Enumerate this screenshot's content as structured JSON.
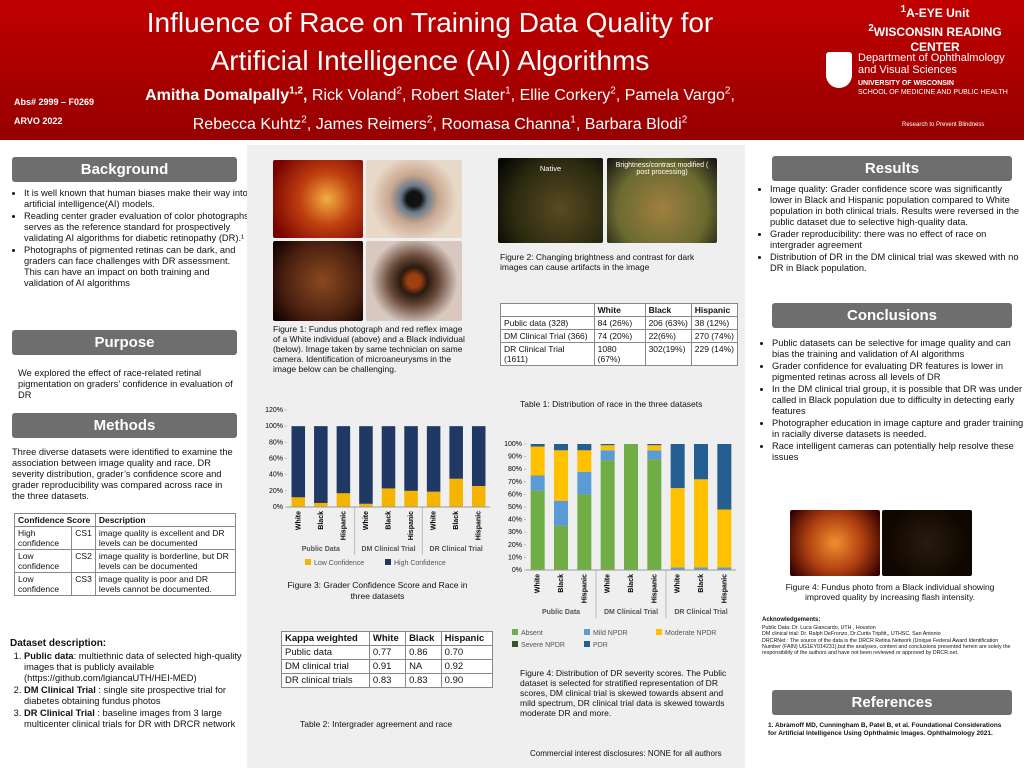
{
  "header": {
    "title": "Influence of Race on Training Data Quality for Artificial Intelligence (AI) Algorithms",
    "authors": [
      {
        "name": "Amitha Domalpally",
        "sup": "1,2"
      },
      {
        "name": "Rick Voland",
        "sup": "2"
      },
      {
        "name": "Robert Slater",
        "sup": "1"
      },
      {
        "name": "Ellie Corkery",
        "sup": "2"
      },
      {
        "name": "Pamela Vargo",
        "sup": "2"
      },
      {
        "name": "Rebecca Kuhtz",
        "sup": "2"
      },
      {
        "name": "James Reimers",
        "sup": "2"
      },
      {
        "name": "Roomasa Channa",
        "sup": "1"
      },
      {
        "name": "Barbara Blodi",
        "sup": "2"
      }
    ],
    "abstract": "Abs# 2999 – F0269",
    "meeting": "ARVO 2022",
    "unit1_sup": "1",
    "unit1": "A-EYE Unit",
    "unit2_sup": "2",
    "unit2": "WISCONSIN READING CENTER",
    "dept": "Department of Ophthalmology and Visual Sciences",
    "univ": "UNIVERSITY OF WISCONSIN",
    "school": "SCHOOL OF MEDICINE AND PUBLIC HEALTH",
    "tagline": "Research to Prevent Blindness"
  },
  "background": {
    "heading": "Background",
    "items": [
      "It is well known that human biases make their way into artificial intelligence(AI) models.",
      "Reading center grader evaluation of color photographs serves as the reference standard for prospectively validating AI algorithms for diabetic retinopathy (DR).¹",
      "Photographs of pigmented retinas can be dark, and graders can face challenges with DR assessment. This can have an impact on both training and validation of AI algorithms"
    ]
  },
  "purpose": {
    "heading": "Purpose",
    "text": "We explored the effect of race-related retinal pigmentation on graders’ confidence in evaluation of DR"
  },
  "methods": {
    "heading": "Methods",
    "text": "Three diverse datasets were identified to examine the association between image quality and race. DR severity distribution, grader’s confidence score and grader reproducibility was compared across race in the three datasets.",
    "table": {
      "header": [
        "Confidence Score",
        "Description"
      ],
      "rows": [
        [
          "High confidence",
          "CS1",
          "image quality is excellent and DR levels can be documented"
        ],
        [
          "Low confidence",
          "CS2",
          "image quality is borderline, but DR levels can be documented"
        ],
        [
          "Low confidence",
          "CS3",
          "image quality is poor and DR levels cannot be documented."
        ]
      ]
    },
    "dataset_heading": "Dataset description:",
    "datasets": [
      {
        "lead": "Public data",
        "text": ": multiethnic data of selected high-quality images that is publicly available (https://github.com/lgiancaUTH/HEI-MED)"
      },
      {
        "lead": "DM Clinical Trial",
        "text": " : single site prospective trial for diabetes obtaining fundus photos"
      },
      {
        "lead": "DR Clinical Trial",
        "text": " : baseline images from 3 large multicenter clinical trials for DR with DRCR network"
      }
    ]
  },
  "figure1": {
    "caption": "Figure 1: Fundus photograph and red reflex image of a White individual (above) and a Black individual (below). Image taken by same technician on same camera. Identification of microaneurysms in the image below can be challenging."
  },
  "figure2": {
    "label_left": "Native",
    "label_right": "Brightness/contrast modified ( post processing)",
    "caption": "Figure 2: Changing brightness and contrast for dark images  can cause artifacts in the image"
  },
  "table1": {
    "header": [
      "",
      "White",
      "Black",
      "Hispanic"
    ],
    "rows": [
      [
        "Public data (328)",
        "84 (26%)",
        "206 (63%)",
        "38 (12%)"
      ],
      [
        "DM Clinical Trial (366)",
        "74 (20%)",
        "22(6%)",
        "270 (74%)"
      ],
      [
        "DR Clinical Trial (1611)",
        "1080 (67%)",
        "302(19%)",
        "229 (14%)"
      ]
    ],
    "caption": "Table 1: Distribution of race in the three datasets"
  },
  "table2": {
    "header": [
      "Kappa weighted",
      "White",
      "Black",
      "Hispanic"
    ],
    "rows": [
      [
        "Public data",
        "0.77",
        "0.86",
        "0.70"
      ],
      [
        "DM clinical trial",
        "0.91",
        "NA",
        "0.92"
      ],
      [
        "DR clinical trials",
        "0.83",
        "0.83",
        "0.90"
      ]
    ],
    "caption": "Table 2: Intergrader agreement and race"
  },
  "chart_data": [
    {
      "type": "bar",
      "stacked": true,
      "caption": "Figure 3:  Grader Confidence Score and Race in three datasets",
      "categories": [
        "White",
        "Black",
        "Hispanic",
        "White",
        "Black",
        "Hispanic",
        "White",
        "Black",
        "Hispanic"
      ],
      "groups": [
        "Public Data",
        "DM Clinical Trial",
        "DR Clinical Trial"
      ],
      "series": [
        {
          "name": "Low Confidence",
          "color": "#f5b400",
          "values": [
            12,
            5,
            17,
            4,
            23,
            20,
            19,
            35,
            26
          ]
        },
        {
          "name": "High Confidence",
          "color": "#1f3864",
          "values": [
            88,
            95,
            83,
            96,
            77,
            80,
            81,
            65,
            74
          ]
        }
      ],
      "ylim": [
        0,
        120
      ],
      "yticks": [
        {
          "value": 0,
          "label": "0%"
        },
        {
          "value": 20,
          "label": "20%"
        },
        {
          "value": 40,
          "label": "40%"
        },
        {
          "value": 60,
          "label": "60%"
        },
        {
          "value": 80,
          "label": "80%"
        },
        {
          "value": 100,
          "label": "100%"
        },
        {
          "value": 120,
          "label": "120%"
        }
      ],
      "legend": "bottom"
    },
    {
      "type": "bar",
      "stacked": true,
      "caption": "Figure 4:  Distribution of DR severity scores. The Public dataset is selected for stratified representation of DR scores, DM clinical trial is skewed towards absent and mild spectrum, DR clinical trial data is skewed towards moderate DR and more.",
      "categories": [
        "White",
        "Black",
        "Hispanic",
        "White",
        "Black",
        "Hispanic",
        "White",
        "Black",
        "Hispanic"
      ],
      "groups": [
        "Public Data",
        "DM Clinical Trial",
        "DR Clinical Trial"
      ],
      "series": [
        {
          "name": "Absent",
          "color": "#70ad47",
          "values": [
            63,
            35,
            60,
            87,
            100,
            88,
            0,
            0,
            0
          ]
        },
        {
          "name": "Mild NPDR",
          "color": "#5b9bd5",
          "values": [
            12,
            20,
            18,
            8,
            0,
            7,
            2,
            2,
            2
          ]
        },
        {
          "name": "Moderate NPDR",
          "color": "#ffc000",
          "values": [
            23,
            40,
            17,
            4,
            0,
            4,
            63,
            70,
            46
          ]
        },
        {
          "name": "Severe NPDR",
          "color": "#375623",
          "values": [
            0,
            0,
            0,
            0,
            0,
            0,
            0,
            0,
            0
          ]
        },
        {
          "name": "PDR",
          "color": "#255e91",
          "values": [
            2,
            5,
            5,
            1,
            0,
            1,
            35,
            28,
            52
          ]
        }
      ],
      "ylim": [
        0,
        100
      ],
      "yticks": [
        {
          "value": 0,
          "label": "0%"
        },
        {
          "value": 10,
          "label": "10%"
        },
        {
          "value": 20,
          "label": "20%"
        },
        {
          "value": 30,
          "label": "30%"
        },
        {
          "value": 40,
          "label": "40%"
        },
        {
          "value": 50,
          "label": "50%"
        },
        {
          "value": 60,
          "label": "60%"
        },
        {
          "value": 70,
          "label": "70%"
        },
        {
          "value": 80,
          "label": "80%"
        },
        {
          "value": 90,
          "label": "90%"
        },
        {
          "value": 100,
          "label": "100%"
        }
      ],
      "legend": "bottom"
    }
  ],
  "disclosure": "Commercial interest disclosures:  NONE  for all authors",
  "results": {
    "heading": "Results",
    "items": [
      "Image quality:  Grader confidence score was significantly lower in Black and Hispanic population compared to White population  in both clinical trials. Results were reversed in the public dataset due to selective high-quality data.",
      "Grader reproducibility: there was no effect of race on intergrader agreement",
      "Distribution of DR in the DM clinical trial was skewed with no DR in Black population."
    ]
  },
  "conclusions": {
    "heading": "Conclusions",
    "items": [
      "Public datasets can be selective for image quality and can bias the training and validation of AI algorithms",
      "Grader confidence for evaluating DR features is lower in pigmented retinas across all levels of DR",
      "In the DM clinical trial group, it is possible that DR was under called in Black population due to difficulty in detecting early features",
      "Photographer education in image capture and grader training in racially diverse datasets is needed.",
      "Race intelligent cameras can potentially help resolve these issues"
    ]
  },
  "figure4_photo": {
    "caption": "Figure 4: Fundus photo  from a Black individual showing improved quality by increasing flash intensity."
  },
  "acknowledgements": {
    "heading": "Acknowledgements:",
    "lines": [
      "Public Data: Dr. Luca Giancardo, UTH , Houston",
      "DM clinical trial: Dr. Ralph DeFronzo, Dr.Curtis Triplitt,, UTHSC, San Antonio",
      "DRCRNet : The source of the data is the DRCR Retina Network (Unique Federal Award Identification Number (FAIN) UG1EY014231),but the analyses, content and conclusions presented herein are solely the responsibility of the authors and have not been reviewed or approved by DRCR.net."
    ]
  },
  "references": {
    "heading": "References",
    "items": [
      "1. Abràmoff MD, Cunningham B, Patel B, et al. Foundational Considerations for Artificial Intelligence Using Ophthalmic Images. Ophthalmology 2021."
    ]
  }
}
